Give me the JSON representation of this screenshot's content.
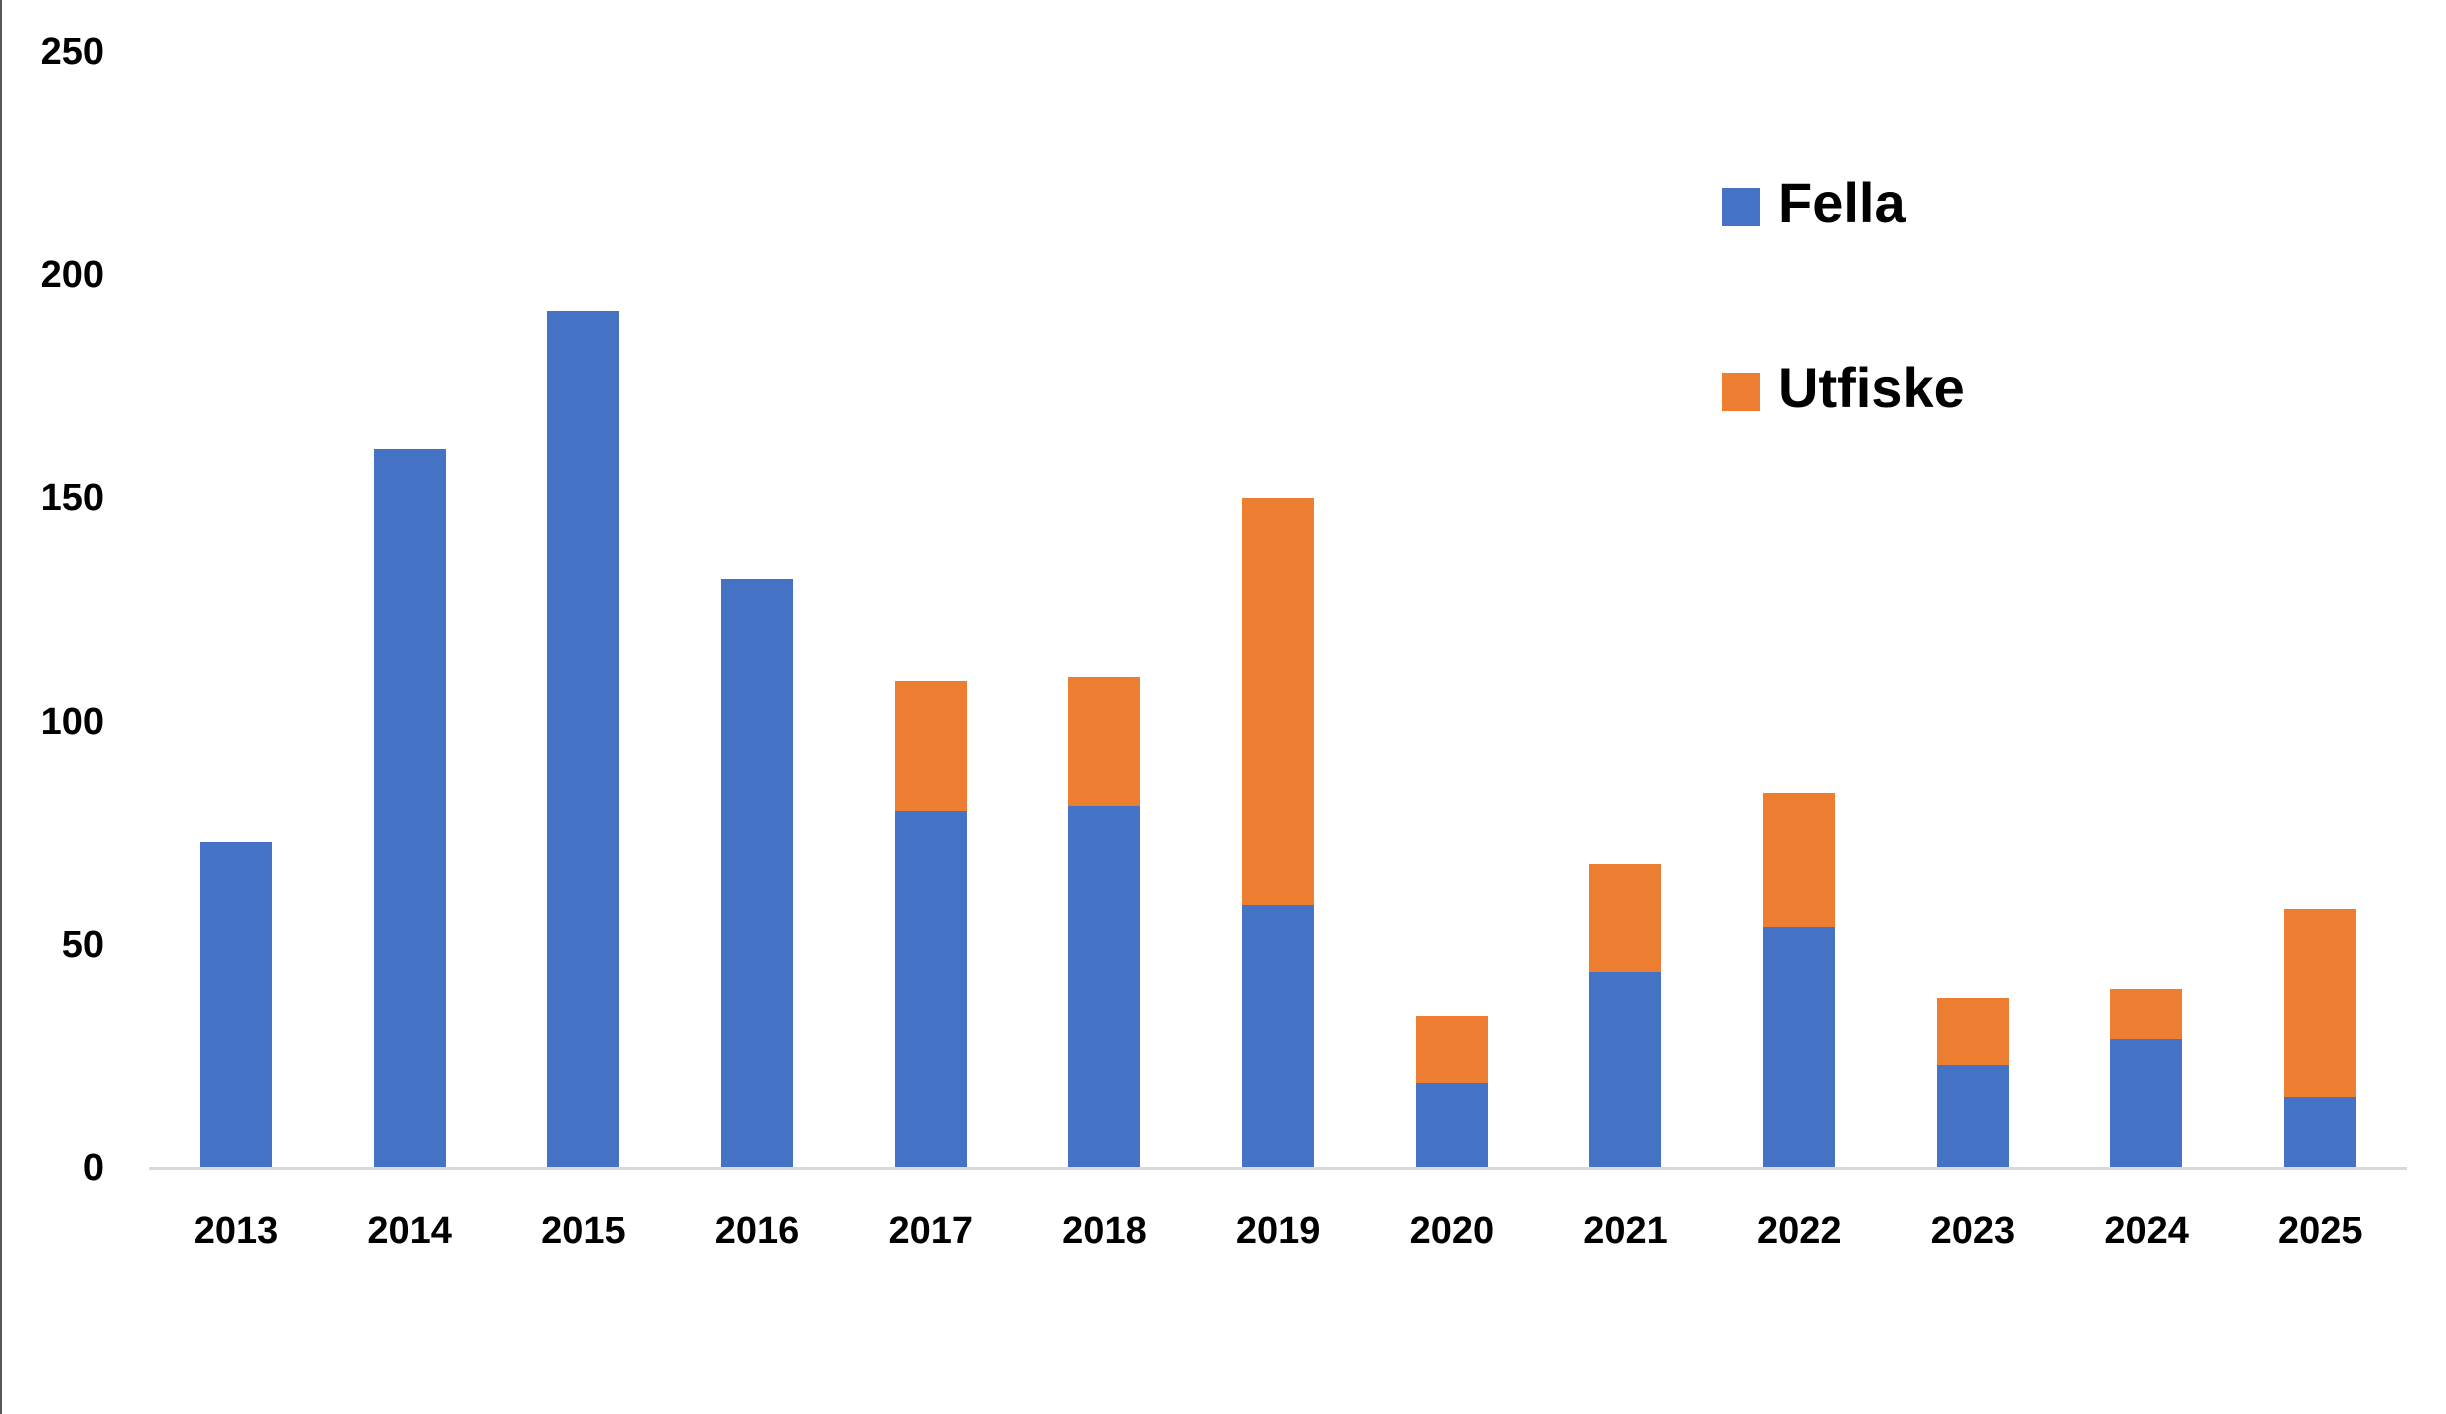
{
  "chart_data": {
    "type": "bar",
    "stacked": true,
    "title": "",
    "xlabel": "",
    "ylabel": "",
    "ylim": [
      0,
      250
    ],
    "yticks": [
      0,
      50,
      100,
      150,
      200,
      250
    ],
    "grid": false,
    "legend_position": "top-right (inside plot)",
    "categories": [
      "2013",
      "2014",
      "2015",
      "2016",
      "2017",
      "2018",
      "2019",
      "2020",
      "2021",
      "2022",
      "2023",
      "2024",
      "2025"
    ],
    "series": [
      {
        "name": "Fella",
        "color": "#4472C4",
        "values": [
          73,
          161,
          192,
          132,
          80,
          81,
          59,
          19,
          44,
          54,
          23,
          29,
          16
        ]
      },
      {
        "name": "Utfiske",
        "color": "#ED7D31",
        "values": [
          0,
          0,
          0,
          0,
          29,
          29,
          91,
          15,
          24,
          30,
          15,
          11,
          42
        ]
      }
    ]
  },
  "legend": {
    "items": [
      {
        "label": "Fella",
        "color": "#4472C4"
      },
      {
        "label": "Utfiske",
        "color": "#ED7D31"
      }
    ]
  },
  "axis": {
    "y_labels": [
      "0",
      "50",
      "100",
      "150",
      "200",
      "250"
    ],
    "axis_line_color": "#D9D9D9"
  }
}
